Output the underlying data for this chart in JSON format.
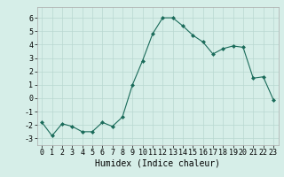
{
  "x": [
    0,
    1,
    2,
    3,
    4,
    5,
    6,
    7,
    8,
    9,
    10,
    11,
    12,
    13,
    14,
    15,
    16,
    17,
    18,
    19,
    20,
    21,
    22,
    23
  ],
  "y": [
    -1.8,
    -2.8,
    -1.9,
    -2.1,
    -2.5,
    -2.5,
    -1.8,
    -2.1,
    -1.4,
    1.0,
    2.8,
    4.8,
    6.0,
    6.0,
    5.4,
    4.7,
    4.2,
    3.3,
    3.7,
    3.9,
    3.8,
    1.5,
    1.6,
    -0.1
  ],
  "line_color": "#1a6b5a",
  "marker": "D",
  "marker_size": 2.0,
  "background_color": "#d6eee8",
  "grid_color": "#b8d8d0",
  "xlabel": "Humidex (Indice chaleur)",
  "xlabel_fontsize": 7,
  "tick_fontsize": 6,
  "ylim": [
    -3.5,
    6.8
  ],
  "xlim": [
    -0.5,
    23.5
  ],
  "yticks": [
    -3,
    -2,
    -1,
    0,
    1,
    2,
    3,
    4,
    5,
    6
  ],
  "xticks": [
    0,
    1,
    2,
    3,
    4,
    5,
    6,
    7,
    8,
    9,
    10,
    11,
    12,
    13,
    14,
    15,
    16,
    17,
    18,
    19,
    20,
    21,
    22,
    23
  ]
}
